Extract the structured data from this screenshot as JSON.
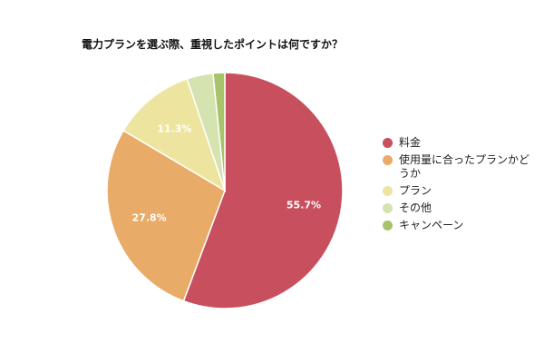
{
  "chart_data": {
    "type": "pie",
    "title": "電力プランを選ぶ際、重視したポイントは何ですか？",
    "categories": [
      "料金",
      "使用量に合ったプランかどうか",
      "プラン",
      "その他",
      "キャンペーン"
    ],
    "values": [
      55.7,
      27.8,
      11.3,
      3.6,
      1.6
    ],
    "data_labels": [
      "55.7%",
      "27.8%",
      "11.3%",
      "",
      ""
    ],
    "colors": [
      "#c8505e",
      "#e8ab68",
      "#ede59f",
      "#d5e3b0",
      "#a8c46a"
    ],
    "legend_position": "right",
    "start_angle_deg": 0,
    "direction": "clockwise"
  }
}
